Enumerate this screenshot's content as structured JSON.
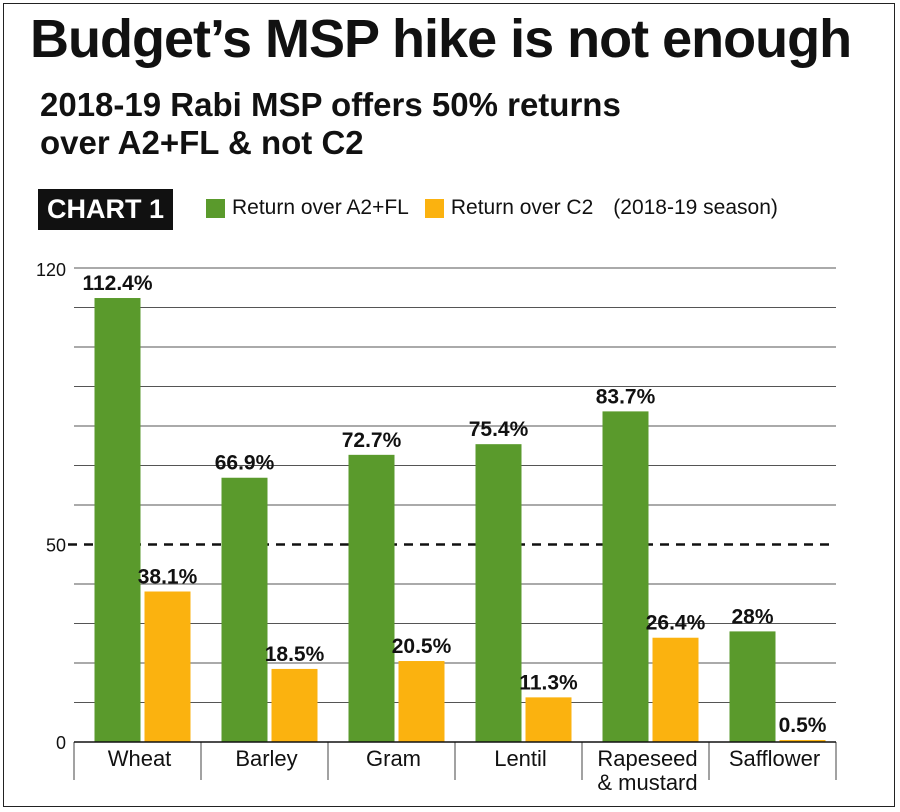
{
  "header": {
    "title": "Budget’s MSP hike is not enough",
    "subtitle_line1": "2018-19 Rabi MSP offers 50% returns",
    "subtitle_line2": "over A2+FL & not C2",
    "chart_badge": "CHART 1",
    "legend_note": "(2018-19 season)"
  },
  "colors": {
    "green": "#5a9a2c",
    "orange": "#fbb20f"
  },
  "chart_data": {
    "type": "bar",
    "categories": [
      "Wheat",
      "Barley",
      "Gram",
      "Lentil",
      "Rapeseed & mustard",
      "Safflower"
    ],
    "category_lines": [
      [
        "Wheat"
      ],
      [
        "Barley"
      ],
      [
        "Gram"
      ],
      [
        "Lentil"
      ],
      [
        "Rapeseed",
        "& mustard"
      ],
      [
        "Safflower"
      ]
    ],
    "series": [
      {
        "name": "Return over A2+FL",
        "values": [
          112.4,
          66.9,
          72.7,
          75.4,
          83.7,
          28
        ],
        "labels": [
          "112.4%",
          "66.9%",
          "72.7%",
          "75.4%",
          "83.7%",
          "28%"
        ]
      },
      {
        "name": "Return over C2",
        "values": [
          38.1,
          18.5,
          20.5,
          11.3,
          26.4,
          0.5
        ],
        "labels": [
          "38.1%",
          "18.5%",
          "20.5%",
          "11.3%",
          "26.4%",
          "0.5%"
        ]
      }
    ],
    "y_ticks": [
      "120",
      "50",
      "0"
    ],
    "ylim": [
      0,
      120
    ],
    "reference_line": 50,
    "grid": true,
    "legend_position": "top"
  }
}
